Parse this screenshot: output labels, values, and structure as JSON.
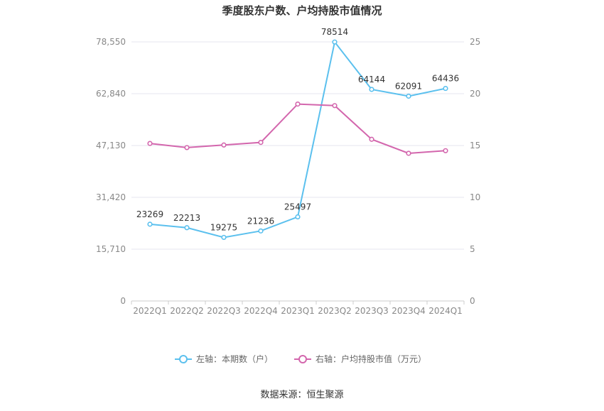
{
  "chart_data": {
    "type": "line",
    "title": "季度股东户数、户均持股市值情况",
    "categories": [
      "2022Q1",
      "2022Q2",
      "2022Q3",
      "2022Q4",
      "2023Q1",
      "2023Q2",
      "2023Q3",
      "2023Q4",
      "2024Q1"
    ],
    "y_left": {
      "min": 0,
      "max": 78550,
      "ticks": [
        0,
        15710,
        31420,
        47130,
        62840,
        78550
      ],
      "tick_labels": [
        "0",
        "15,710",
        "31,420",
        "47,130",
        "62,840",
        "78,550"
      ]
    },
    "y_right": {
      "min": 0,
      "max": 25,
      "ticks": [
        0,
        5,
        10,
        15,
        20,
        25
      ],
      "tick_labels": [
        "0",
        "5",
        "10",
        "15",
        "20",
        "25"
      ]
    },
    "grid": true,
    "legend_position": "bottom",
    "series": [
      {
        "name": "左轴：本期数（户）",
        "axis": "left",
        "color": "#5bc0ee",
        "values": [
          23269,
          22213,
          19275,
          21236,
          25497,
          78514,
          64144,
          62091,
          64436
        ],
        "data_labels": [
          "23269",
          "22213",
          "19275",
          "21236",
          "25497",
          "78514",
          "64144",
          "62091",
          "64436"
        ]
      },
      {
        "name": "右轴：户均持股市值（万元）",
        "axis": "right",
        "color": "#d366ad",
        "values": [
          15.2,
          14.8,
          15.05,
          15.3,
          19.0,
          18.85,
          15.6,
          14.25,
          14.5
        ]
      }
    ]
  },
  "source": "数据来源：恒生聚源"
}
